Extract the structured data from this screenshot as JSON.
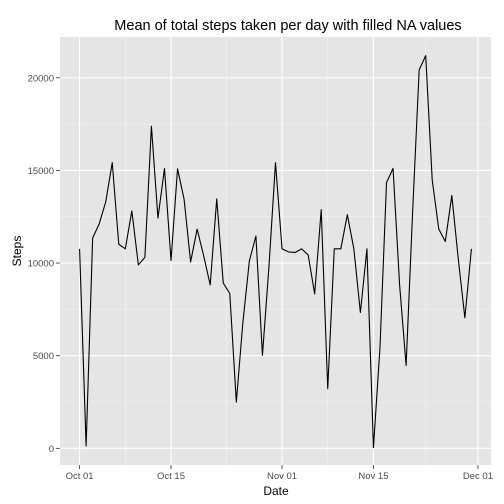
{
  "chart_data": {
    "type": "line",
    "title": "Mean of total steps taken per day with filled NA values",
    "xlabel": "Date",
    "ylabel": "Steps",
    "x_start": "2012-10-01",
    "x": [
      "2012-10-01",
      "2012-10-02",
      "2012-10-03",
      "2012-10-04",
      "2012-10-05",
      "2012-10-06",
      "2012-10-07",
      "2012-10-08",
      "2012-10-09",
      "2012-10-10",
      "2012-10-11",
      "2012-10-12",
      "2012-10-13",
      "2012-10-14",
      "2012-10-15",
      "2012-10-16",
      "2012-10-17",
      "2012-10-18",
      "2012-10-19",
      "2012-10-20",
      "2012-10-21",
      "2012-10-22",
      "2012-10-23",
      "2012-10-24",
      "2012-10-25",
      "2012-10-26",
      "2012-10-27",
      "2012-10-28",
      "2012-10-29",
      "2012-10-30",
      "2012-10-31",
      "2012-11-01",
      "2012-11-02",
      "2012-11-03",
      "2012-11-04",
      "2012-11-05",
      "2012-11-06",
      "2012-11-07",
      "2012-11-08",
      "2012-11-09",
      "2012-11-10",
      "2012-11-11",
      "2012-11-12",
      "2012-11-13",
      "2012-11-14",
      "2012-11-15",
      "2012-11-16",
      "2012-11-17",
      "2012-11-18",
      "2012-11-19",
      "2012-11-20",
      "2012-11-21",
      "2012-11-22",
      "2012-11-23",
      "2012-11-24",
      "2012-11-25",
      "2012-11-26",
      "2012-11-27",
      "2012-11-28",
      "2012-11-29",
      "2012-11-30"
    ],
    "values": [
      10766,
      126,
      11352,
      12116,
      13294,
      15420,
      11015,
      10766,
      12811,
      9900,
      10304,
      17382,
      12426,
      15098,
      10139,
      15084,
      13452,
      10056,
      11829,
      10395,
      8821,
      13460,
      8918,
      8355,
      2492,
      6778,
      10119,
      11458,
      5018,
      9819,
      15414,
      10766,
      10600,
      10571,
      10766,
      10439,
      8334,
      12883,
      3219,
      10766,
      10766,
      12608,
      10765,
      7336,
      10766,
      41,
      5441,
      14339,
      15110,
      8841,
      4472,
      12787,
      20427,
      21194,
      14478,
      11834,
      11162,
      13646,
      10183,
      7047,
      10766
    ],
    "x_ticks": [
      {
        "label": "Oct 01",
        "date": "2012-10-01"
      },
      {
        "label": "Oct 15",
        "date": "2012-10-15"
      },
      {
        "label": "Nov 01",
        "date": "2012-11-01"
      },
      {
        "label": "Nov 15",
        "date": "2012-11-15"
      },
      {
        "label": "Dec 01",
        "date": "2012-12-01"
      }
    ],
    "y_ticks": [
      0,
      5000,
      10000,
      15000,
      20000
    ],
    "ylim": [
      -900,
      22200
    ],
    "xlim": [
      "2012-09-28",
      "2012-12-03"
    ],
    "grid": true,
    "colors": {
      "panel": "#e5e5e5",
      "grid_major": "#ffffff",
      "grid_minor": "#f2f2f2",
      "line": "#000000",
      "tick_label": "#4d4d4d"
    }
  }
}
